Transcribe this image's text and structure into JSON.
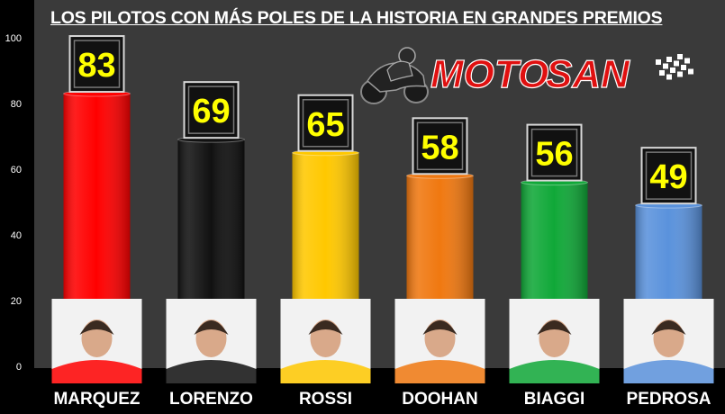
{
  "title": "LOS PILOTOS CON MÁS POLES DE LA HISTORIA EN GRANDES PREMIOS",
  "logo": {
    "text_part1": "MOTO",
    "text_part2": "SAN",
    "icon": "motorcycle-rider-icon"
  },
  "colors": {
    "background": "#000000",
    "plot_area": "#3a3a3a",
    "value_text": "#ffff00",
    "axis_text": "#ffffff",
    "logo_red": "#e01010"
  },
  "chart_data": {
    "type": "bar",
    "title": "LOS PILOTOS CON MÁS POLES DE LA HISTORIA EN GRANDES PREMIOS",
    "xlabel": "",
    "ylabel": "",
    "ylim": [
      0,
      100
    ],
    "y_ticks": [
      0,
      20,
      40,
      60,
      80,
      100
    ],
    "grid": false,
    "legend": "none",
    "categories": [
      "MARQUEZ",
      "LORENZO",
      "ROSSI",
      "DOOHAN",
      "BIAGGI",
      "PEDROSA"
    ],
    "values": [
      83,
      69,
      65,
      58,
      56,
      49
    ],
    "value_labels": [
      "83",
      "69",
      "65",
      "58",
      "56",
      "49"
    ],
    "bar_colors": [
      "#ff0000",
      "#111111",
      "#ffc800",
      "#f07810",
      "#10a838",
      "#5a92dc"
    ],
    "rider_photos": [
      "rider-photo-marquez",
      "rider-photo-lorenzo",
      "rider-photo-rossi",
      "rider-photo-doohan",
      "rider-photo-biaggi",
      "rider-photo-pedrosa"
    ]
  }
}
